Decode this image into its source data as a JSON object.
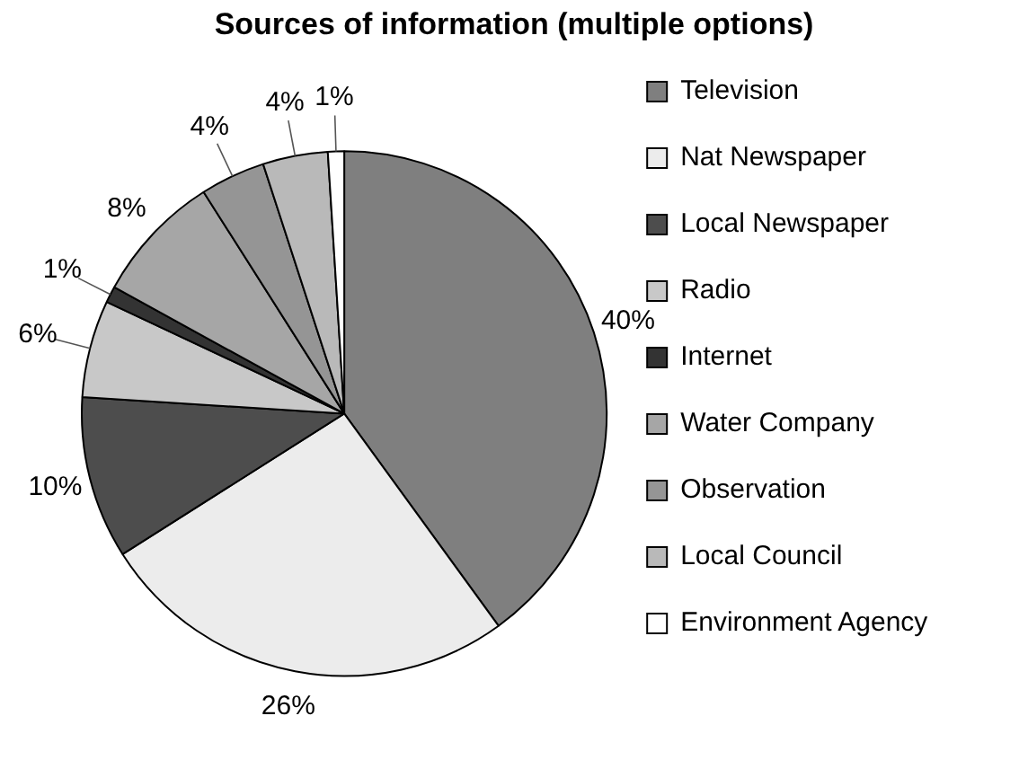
{
  "chart_data": {
    "type": "pie",
    "title": "Sources of information (multiple options)",
    "categories": [
      "Television",
      "Nat Newspaper",
      "Local Newspaper",
      "Radio",
      "Internet",
      "Water Company",
      "Observation",
      "Local Council",
      "Environment Agency"
    ],
    "values": [
      40,
      26,
      10,
      6,
      1,
      8,
      4,
      4,
      1
    ],
    "value_labels": [
      "40%",
      "26%",
      "10%",
      "6%",
      "1%",
      "8%",
      "4%",
      "4%",
      "1%"
    ],
    "colors": [
      "#7f7f7f",
      "#ececec",
      "#4d4d4d",
      "#c8c8c8",
      "#333333",
      "#a6a6a6",
      "#959595",
      "#b9b9b9",
      "#ffffff"
    ],
    "legend": "right"
  }
}
